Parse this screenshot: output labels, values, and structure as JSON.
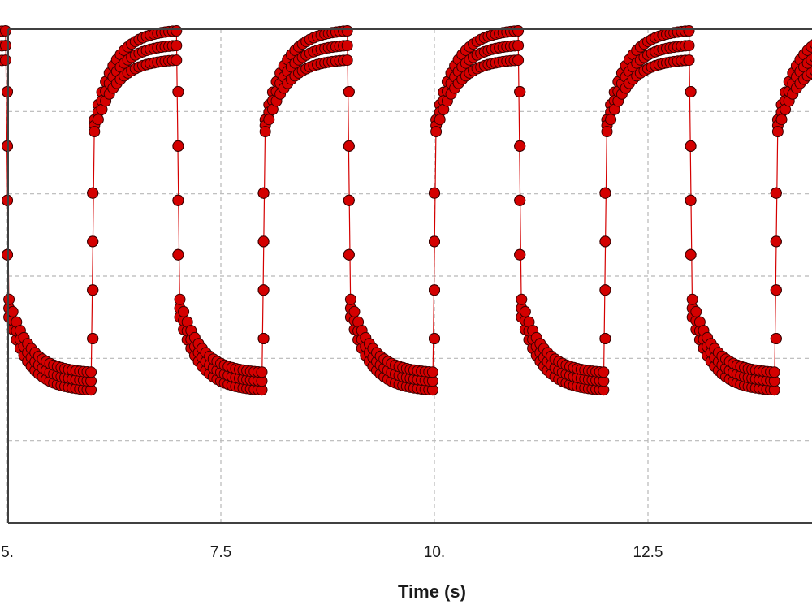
{
  "chart_data": {
    "type": "scatter",
    "title": "",
    "xlabel": "Time (s)",
    "ylabel": "",
    "xlim": [
      5.0,
      14.5
    ],
    "ylim": [
      0,
      6
    ],
    "x_tick_labels": [
      {
        "value": 5.0,
        "label": "5."
      },
      {
        "value": 7.5,
        "label": "7.5"
      },
      {
        "value": 10.0,
        "label": "10."
      },
      {
        "value": 12.5,
        "label": "12.5"
      }
    ],
    "y_grid_values": [
      1,
      2,
      3,
      4,
      5
    ],
    "x_grid_values": [
      5.0,
      7.5,
      10.0,
      12.5
    ],
    "grid": true,
    "legend": "none",
    "square_wave": {
      "period_s": 2.0,
      "first_rise_s": 6.0,
      "first_fall_s": 7.0,
      "high_level_start": 4.9,
      "high_level_end": 6.0,
      "low_level_start": 2.5,
      "low_level_end": 1.6,
      "transition_duration_s": 0.02,
      "repeated_traces": 3
    },
    "series": [
      {
        "marker": "circle",
        "color": "#d40000",
        "edge_color": "#3a0000",
        "line_color": "#d40000"
      }
    ]
  }
}
